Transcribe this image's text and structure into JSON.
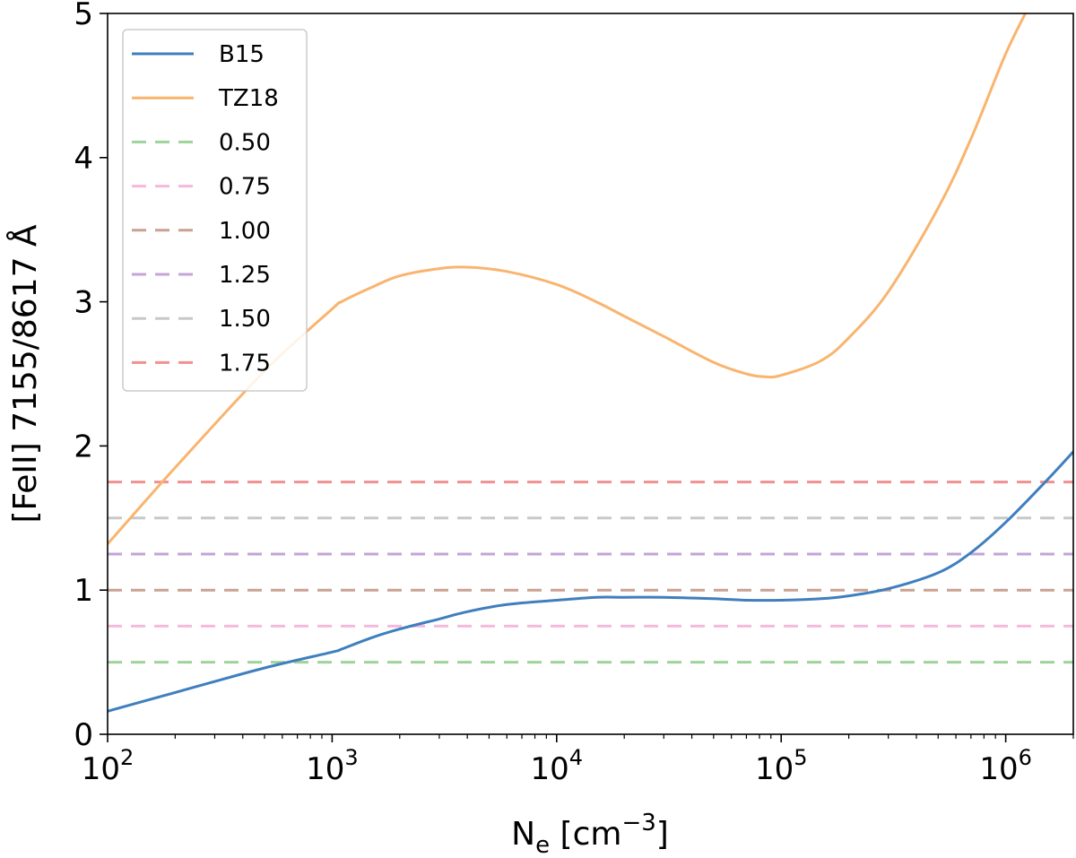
{
  "chart_data": {
    "type": "line",
    "title": "",
    "xlabel": {
      "base": "N",
      "sub": "e",
      "units_open": " [cm",
      "units_sup": "−3",
      "units_close": "]"
    },
    "ylabel": "[FeII] 7155/8617 Å",
    "xscale": "log",
    "xlim": [
      100,
      2000000
    ],
    "ylim": [
      0,
      5
    ],
    "grid": false,
    "legend_position": "top-left",
    "x_ticks": [
      {
        "value": 100,
        "base": "10",
        "exp": "2"
      },
      {
        "value": 1000,
        "base": "10",
        "exp": "3"
      },
      {
        "value": 10000,
        "base": "10",
        "exp": "4"
      },
      {
        "value": 100000,
        "base": "10",
        "exp": "5"
      },
      {
        "value": 1000000,
        "base": "10",
        "exp": "6"
      }
    ],
    "y_ticks": [
      {
        "value": 0,
        "label": "0"
      },
      {
        "value": 1,
        "label": "1"
      },
      {
        "value": 2,
        "label": "2"
      },
      {
        "value": 3,
        "label": "3"
      },
      {
        "value": 4,
        "label": "4"
      },
      {
        "value": 5,
        "label": "5"
      }
    ],
    "series": [
      {
        "name": "B15",
        "style": "solid",
        "color": "#3f7fbd",
        "x": [
          100,
          200,
          500,
          1000,
          1100,
          1500,
          2000,
          3000,
          4000,
          6000,
          10000,
          15000,
          20000,
          30000,
          50000,
          70000,
          100000,
          150000,
          200000,
          300000,
          500000,
          700000,
          1000000,
          1500000,
          2000000
        ],
        "y": [
          0.16,
          0.29,
          0.46,
          0.57,
          0.59,
          0.67,
          0.73,
          0.8,
          0.85,
          0.9,
          0.93,
          0.95,
          0.95,
          0.95,
          0.94,
          0.93,
          0.93,
          0.94,
          0.96,
          1.01,
          1.12,
          1.26,
          1.47,
          1.75,
          1.96
        ]
      },
      {
        "name": "TZ18",
        "style": "solid",
        "color": "#f9b46e",
        "x": [
          100,
          200,
          500,
          1000,
          1100,
          1500,
          2000,
          3000,
          4000,
          6000,
          10000,
          15000,
          20000,
          30000,
          50000,
          70000,
          85000,
          100000,
          150000,
          200000,
          300000,
          500000,
          700000,
          1000000,
          1300000
        ],
        "y": [
          1.32,
          1.85,
          2.52,
          2.95,
          3.0,
          3.1,
          3.18,
          3.23,
          3.24,
          3.21,
          3.12,
          3.0,
          2.9,
          2.76,
          2.58,
          2.5,
          2.48,
          2.49,
          2.59,
          2.75,
          3.07,
          3.65,
          4.13,
          4.72,
          5.08
        ]
      },
      {
        "name": "0.50",
        "style": "dashed",
        "color": "#9ed39a",
        "x": [
          100,
          2000000
        ],
        "y": [
          0.5,
          0.5
        ]
      },
      {
        "name": "0.75",
        "style": "dashed",
        "color": "#f5b9dc",
        "x": [
          100,
          2000000
        ],
        "y": [
          0.75,
          0.75
        ]
      },
      {
        "name": "1.00",
        "style": "dashed",
        "color": "#c9a192",
        "x": [
          100,
          2000000
        ],
        "y": [
          1.0,
          1.0
        ]
      },
      {
        "name": "1.25",
        "style": "dashed",
        "color": "#c5a4d8",
        "x": [
          100,
          2000000
        ],
        "y": [
          1.25,
          1.25
        ]
      },
      {
        "name": "1.50",
        "style": "dashed",
        "color": "#c8c8c8",
        "x": [
          100,
          2000000
        ],
        "y": [
          1.5,
          1.5
        ]
      },
      {
        "name": "1.75",
        "style": "dashed",
        "color": "#f19090",
        "x": [
          100,
          2000000
        ],
        "y": [
          1.75,
          1.75
        ]
      }
    ]
  }
}
